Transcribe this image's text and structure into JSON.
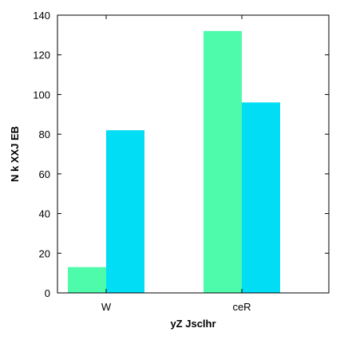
{
  "chart_data": {
    "type": "bar",
    "categories": [
      "W",
      "ceR"
    ],
    "series": [
      {
        "color": "#4dfbaa",
        "values": [
          13,
          132
        ]
      },
      {
        "color": "#00ddf5",
        "values": [
          82,
          96
        ]
      }
    ],
    "xlabel": "yZ Jsclhr",
    "ylabel": "N k XXJ EB",
    "ylim": [
      0,
      140
    ],
    "yticks": [
      0,
      20,
      40,
      60,
      80,
      100,
      120,
      140
    ],
    "grid": false,
    "legend": "none"
  }
}
